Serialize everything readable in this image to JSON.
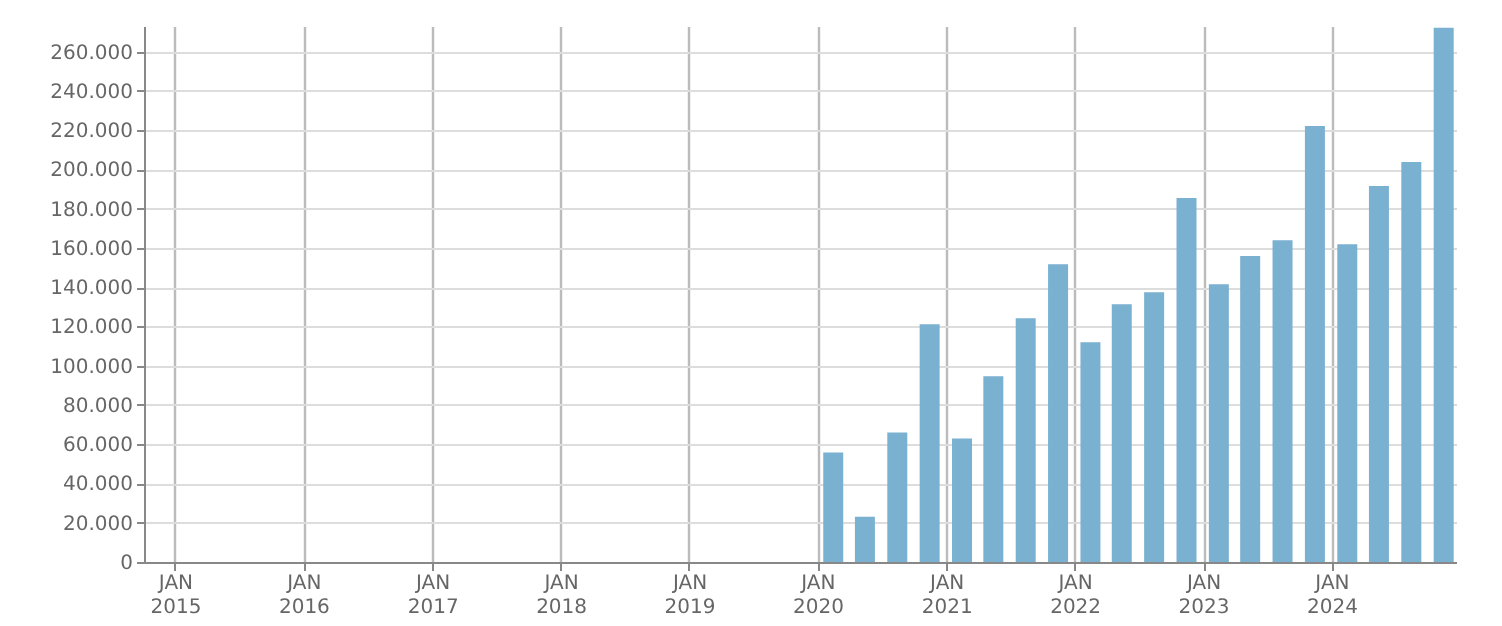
{
  "chart_data": {
    "type": "bar",
    "x": [
      "2020-02-15",
      "2020-05-15",
      "2020-08-15",
      "2020-11-15",
      "2021-02-15",
      "2021-05-15",
      "2021-08-15",
      "2021-11-15",
      "2022-02-15",
      "2022-05-15",
      "2022-08-15",
      "2022-11-15",
      "2023-02-15",
      "2023-05-15",
      "2023-08-15",
      "2023-11-15",
      "2024-02-15",
      "2024-05-15",
      "2024-08-15",
      "2024-11-15"
    ],
    "values": [
      55800,
      23100,
      66000,
      121100,
      62900,
      94600,
      124100,
      151700,
      111900,
      131300,
      137400,
      185400,
      141500,
      155800,
      163900,
      222100,
      161900,
      191500,
      203700,
      272100
    ],
    "color": "#7ab1d1",
    "xlim": [
      "2014-10-05",
      "2024-12-20"
    ],
    "xticks": [
      {
        "value": "2015-01-01",
        "label": "JAN 2015"
      },
      {
        "value": "2016-01-01",
        "label": "JAN 2016"
      },
      {
        "value": "2017-01-01",
        "label": "JAN 2017"
      },
      {
        "value": "2018-01-01",
        "label": "JAN 2018"
      },
      {
        "value": "2019-01-01",
        "label": "JAN 2019"
      },
      {
        "value": "2020-01-01",
        "label": "JAN 2020"
      },
      {
        "value": "2021-01-01",
        "label": "JAN 2021"
      },
      {
        "value": "2022-01-01",
        "label": "JAN 2022"
      },
      {
        "value": "2023-01-01",
        "label": "JAN 2023"
      },
      {
        "value": "2024-01-01",
        "label": "JAN 2024"
      }
    ],
    "ylim": [
      0,
      273000
    ],
    "yticks": [
      0,
      {
        "value": 20000,
        "label": "20.000"
      },
      {
        "value": 40000,
        "label": "40.000"
      },
      {
        "value": 60000,
        "label": "60.000"
      },
      {
        "value": 80000,
        "label": "80.000"
      },
      {
        "value": 100000,
        "label": "100.000"
      },
      {
        "value": 120000,
        "label": "120.000"
      },
      {
        "value": 140000,
        "label": "140.000"
      },
      {
        "value": 160000,
        "label": "160.000"
      },
      {
        "value": 180000,
        "label": "180.000"
      },
      {
        "value": 200000,
        "label": "200.000"
      },
      {
        "value": 220000,
        "label": "220.000"
      },
      {
        "value": 240000,
        "label": "240.000"
      },
      {
        "value": 260000,
        "label": "260.000"
      }
    ],
    "grid": true
  }
}
